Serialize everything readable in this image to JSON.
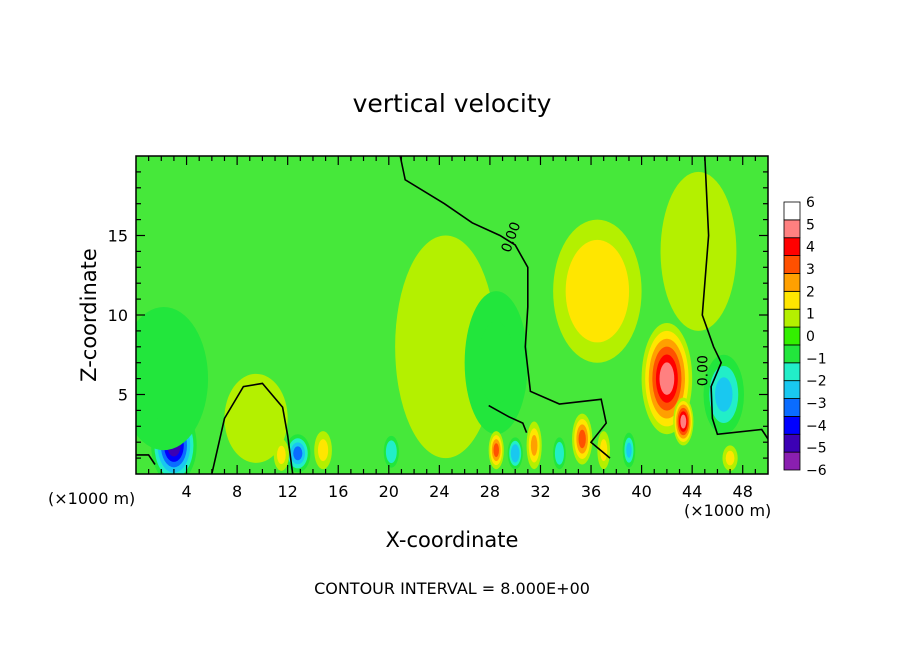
{
  "chart_data": {
    "type": "heatmap",
    "title": "vertical velocity",
    "xlabel": "X-coordinate",
    "ylabel": "Z-coordinate",
    "x_unit": "(×1000 m)",
    "x_unit_right": "(×1000 m)",
    "footer": "CONTOUR INTERVAL = 8.000E+00",
    "xlim": [
      0,
      50
    ],
    "ylim": [
      0,
      20
    ],
    "x_ticks": [
      4,
      8,
      12,
      16,
      20,
      24,
      28,
      32,
      36,
      40,
      44,
      48
    ],
    "y_ticks": [
      5,
      10,
      15
    ],
    "colorbar": {
      "min": -6,
      "max": 6,
      "labels": [
        "6",
        "5",
        "4",
        "3",
        "2",
        "1",
        "0",
        "−1",
        "−2",
        "−3",
        "−4",
        "−5",
        "−6"
      ],
      "colors": [
        "#8a1fb0",
        "#3c00b4",
        "#0000ff",
        "#0a6cff",
        "#19c8f0",
        "#22eec8",
        "#22e63c",
        "#33f000",
        "#b4f000",
        "#ffe600",
        "#ffa000",
        "#ff5000",
        "#ff0000",
        "#ff8080",
        "#ffffff"
      ]
    },
    "contour_labels": [
      {
        "text": "0.00",
        "x": 30.0,
        "z": 14.8
      },
      {
        "text": "0.00",
        "x": 45.2,
        "z": 6.5
      }
    ],
    "features": [
      {
        "x": 3.0,
        "z": 1.8,
        "w": -6,
        "rx": 1.8,
        "rz": 2.4
      },
      {
        "x": 2.2,
        "z": 6.0,
        "w": -1.5,
        "rx": 3.5,
        "rz": 4.5
      },
      {
        "x": 9.5,
        "z": 3.5,
        "w": 1,
        "rx": 2.5,
        "rz": 2.8
      },
      {
        "x": 12.8,
        "z": 1.3,
        "w": -4,
        "rx": 1.0,
        "rz": 1.2
      },
      {
        "x": 11.5,
        "z": 1.2,
        "w": 2,
        "rx": 0.6,
        "rz": 1.0
      },
      {
        "x": 14.8,
        "z": 1.5,
        "w": 2,
        "rx": 0.7,
        "rz": 1.2
      },
      {
        "x": 20.2,
        "z": 1.4,
        "w": -2.5,
        "rx": 0.6,
        "rz": 1.0
      },
      {
        "x": 24.5,
        "z": 8.0,
        "w": 0.8,
        "rx": 4.0,
        "rz": 7.0
      },
      {
        "x": 28.5,
        "z": 7.0,
        "w": -1.3,
        "rx": 2.5,
        "rz": 4.5
      },
      {
        "x": 28.5,
        "z": 1.5,
        "w": 3.5,
        "rx": 0.6,
        "rz": 1.2
      },
      {
        "x": 30.0,
        "z": 1.3,
        "w": -3.5,
        "rx": 0.6,
        "rz": 1.0
      },
      {
        "x": 31.5,
        "z": 1.8,
        "w": 3.0,
        "rx": 0.6,
        "rz": 1.5
      },
      {
        "x": 33.5,
        "z": 1.3,
        "w": -2.5,
        "rx": 0.5,
        "rz": 1.0
      },
      {
        "x": 35.3,
        "z": 2.2,
        "w": 3.5,
        "rx": 0.8,
        "rz": 1.6
      },
      {
        "x": 37.0,
        "z": 1.5,
        "w": 2.0,
        "rx": 0.5,
        "rz": 1.2
      },
      {
        "x": 39.0,
        "z": 1.5,
        "w": -3.0,
        "rx": 0.5,
        "rz": 1.1
      },
      {
        "x": 36.5,
        "z": 11.5,
        "w": 2.2,
        "rx": 3.5,
        "rz": 4.5
      },
      {
        "x": 42.0,
        "z": 6.0,
        "w": 6.0,
        "rx": 2.0,
        "rz": 3.5
      },
      {
        "x": 43.3,
        "z": 3.3,
        "w": 5.5,
        "rx": 0.8,
        "rz": 1.5
      },
      {
        "x": 46.5,
        "z": 5.0,
        "w": -3.0,
        "rx": 1.6,
        "rz": 2.5
      },
      {
        "x": 47.0,
        "z": 1.0,
        "w": 2.0,
        "rx": 0.6,
        "rz": 0.8
      },
      {
        "x": 44.5,
        "z": 14.0,
        "w": 0.5,
        "rx": 3.0,
        "rz": 5.0
      }
    ]
  }
}
